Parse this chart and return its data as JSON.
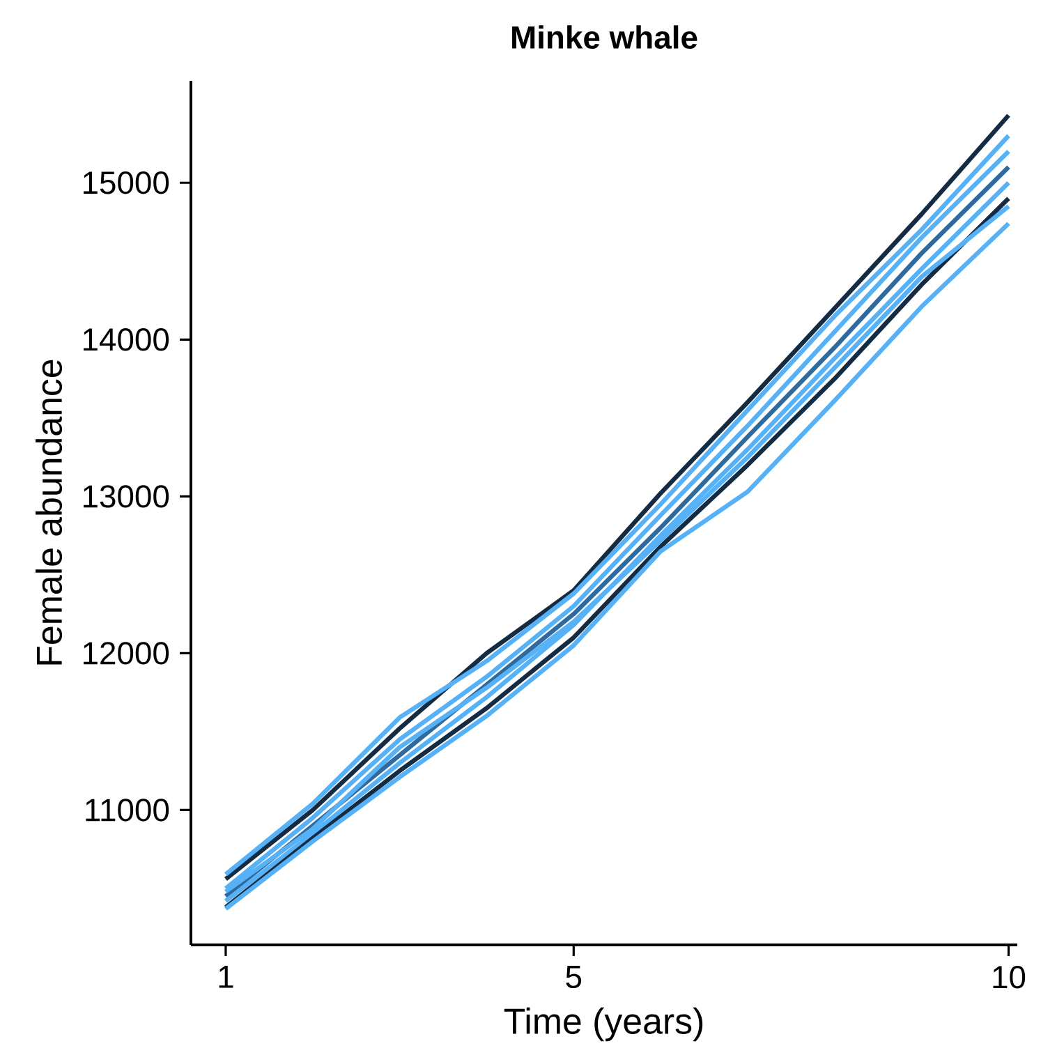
{
  "chart_data": {
    "type": "line",
    "title": "Minke whale",
    "xlabel": "Time (years)",
    "ylabel": "Female abundance",
    "x": [
      1,
      2,
      3,
      4,
      5,
      6,
      7,
      8,
      9,
      10
    ],
    "series": [
      {
        "color": "#132b43",
        "values": [
          10560,
          11000,
          11520,
          12000,
          12400,
          13020,
          13600,
          14200,
          14800,
          15430
        ]
      },
      {
        "color": "#56b1f7",
        "values": [
          10590,
          11040,
          11590,
          11950,
          12380,
          12950,
          13550,
          14150,
          14700,
          15300
        ]
      },
      {
        "color": "#56b1f7",
        "values": [
          10500,
          10950,
          11450,
          11850,
          12300,
          12880,
          13450,
          14050,
          14650,
          15200
        ]
      },
      {
        "color": "#2e6a9e",
        "values": [
          10450,
          10900,
          11350,
          11800,
          12250,
          12800,
          13380,
          13950,
          14550,
          15100
        ]
      },
      {
        "color": "#56b1f7",
        "values": [
          10420,
          10850,
          11300,
          11720,
          12180,
          12750,
          13300,
          13880,
          14450,
          15000
        ]
      },
      {
        "color": "#132b43",
        "values": [
          10380,
          10820,
          11250,
          11650,
          12100,
          12680,
          13200,
          13750,
          14350,
          14900
        ]
      },
      {
        "color": "#56b1f7",
        "values": [
          10370,
          10800,
          11210,
          11600,
          12050,
          12650,
          13030,
          13610,
          14210,
          14740
        ]
      },
      {
        "color": "#56b1f7",
        "values": [
          10480,
          10880,
          11400,
          11780,
          12200,
          12720,
          13250,
          13820,
          14400,
          14850
        ]
      }
    ],
    "xlim": [
      0.6,
      10.1
    ],
    "ylim": [
      10140,
      15650
    ],
    "xticks": [
      1,
      5,
      10
    ],
    "yticks": [
      11000,
      12000,
      13000,
      14000,
      15000
    ],
    "grid": false,
    "marker": "none",
    "line_style": "solid"
  }
}
